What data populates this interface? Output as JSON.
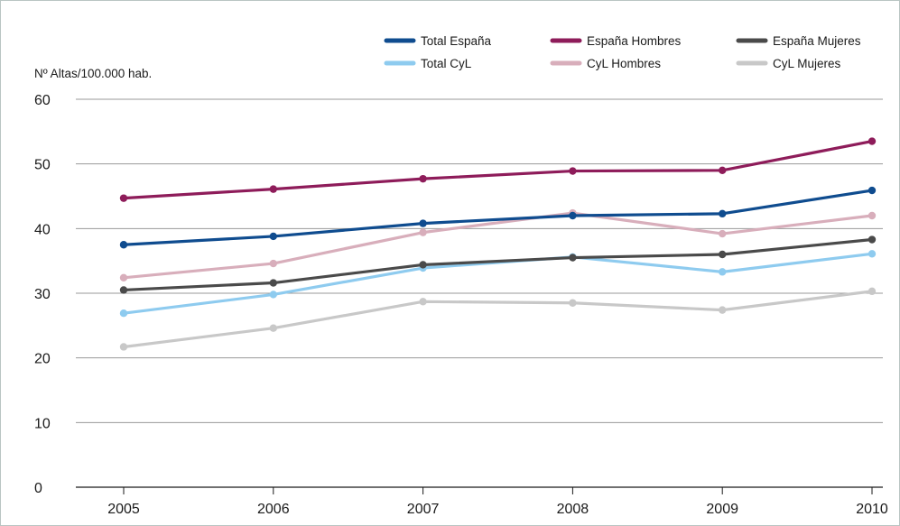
{
  "chart_data": {
    "type": "line",
    "ylabel": "Nº Altas/100.000 hab.",
    "xlabel": "",
    "x": [
      "2005",
      "2006",
      "2007",
      "2008",
      "2009",
      "2010"
    ],
    "ylim": [
      0,
      60
    ],
    "yticks": [
      0,
      10,
      20,
      30,
      40,
      50,
      60
    ],
    "grid": true,
    "legend_position": "top-right",
    "series": [
      {
        "name": "Total España",
        "color": "#0f4c8f",
        "values": [
          37.5,
          38.8,
          40.8,
          42.0,
          42.3,
          45.9
        ]
      },
      {
        "name": "Total CyL",
        "color": "#8ecbef",
        "values": [
          26.9,
          29.8,
          33.9,
          35.6,
          33.3,
          36.1
        ]
      },
      {
        "name": "España Hombres",
        "color": "#8e1c5a",
        "values": [
          44.7,
          46.1,
          47.7,
          48.9,
          49.0,
          53.5
        ]
      },
      {
        "name": "CyL Hombres",
        "color": "#d8aebb",
        "values": [
          32.4,
          34.6,
          39.4,
          42.4,
          39.2,
          42.0
        ]
      },
      {
        "name": "España Mujeres",
        "color": "#4a4a4a",
        "values": [
          30.5,
          31.6,
          34.4,
          35.5,
          36.0,
          38.3
        ]
      },
      {
        "name": "CyL Mujeres",
        "color": "#c8c8c8",
        "values": [
          21.7,
          24.6,
          28.7,
          28.5,
          27.4,
          30.3
        ]
      }
    ]
  }
}
